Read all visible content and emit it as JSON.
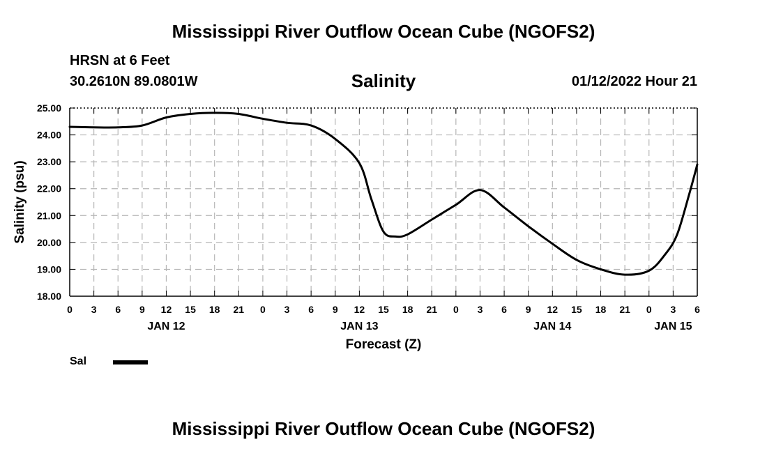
{
  "page": {
    "title_top": "Mississippi River Outflow Ocean Cube (NGOFS2)",
    "title_bottom": "Mississippi River Outflow Ocean Cube (NGOFS2)",
    "station": "HRSN at 6 Feet",
    "coords": "30.2610N  89.0801W",
    "timestamp": "01/12/2022 Hour 21"
  },
  "chart_data": {
    "type": "line",
    "title": "Salinity",
    "xlabel": "Forecast (Z)",
    "ylabel": "Salinity (psu)",
    "ylim": [
      18,
      25
    ],
    "xlim": [
      0,
      78
    ],
    "x_unit": "hours from 00Z JAN 12",
    "y_ticks": [
      "18.00",
      "19.00",
      "20.00",
      "21.00",
      "22.00",
      "23.00",
      "24.00",
      "25.00"
    ],
    "x_ticks": [
      "0",
      "3",
      "6",
      "9",
      "12",
      "15",
      "18",
      "21",
      "0",
      "3",
      "6",
      "9",
      "12",
      "15",
      "18",
      "21",
      "0",
      "3",
      "6",
      "9",
      "12",
      "15",
      "18",
      "21",
      "0",
      "3",
      "6"
    ],
    "date_labels": [
      {
        "label": "JAN 12",
        "hour": 12
      },
      {
        "label": "JAN 13",
        "hour": 36
      },
      {
        "label": "JAN 14",
        "hour": 60
      },
      {
        "label": "JAN 15",
        "hour": 75
      }
    ],
    "grid": true,
    "legend_position": "bottom-left",
    "series": [
      {
        "name": "Sal",
        "color": "#000000",
        "x": [
          0,
          3,
          6,
          9,
          12,
          15,
          18,
          21,
          24,
          27,
          30,
          33,
          36,
          37.5,
          39,
          40.5,
          42,
          45,
          48,
          51,
          54,
          57,
          60,
          63,
          66,
          69,
          72,
          74,
          75.5,
          77,
          78
        ],
        "values": [
          24.3,
          24.28,
          24.28,
          24.35,
          24.65,
          24.78,
          24.82,
          24.78,
          24.6,
          24.45,
          24.35,
          23.85,
          22.95,
          21.6,
          20.4,
          20.22,
          20.3,
          20.85,
          21.4,
          21.95,
          21.3,
          20.6,
          19.95,
          19.35,
          19.0,
          18.8,
          18.95,
          19.55,
          20.3,
          21.8,
          22.9
        ]
      }
    ]
  }
}
